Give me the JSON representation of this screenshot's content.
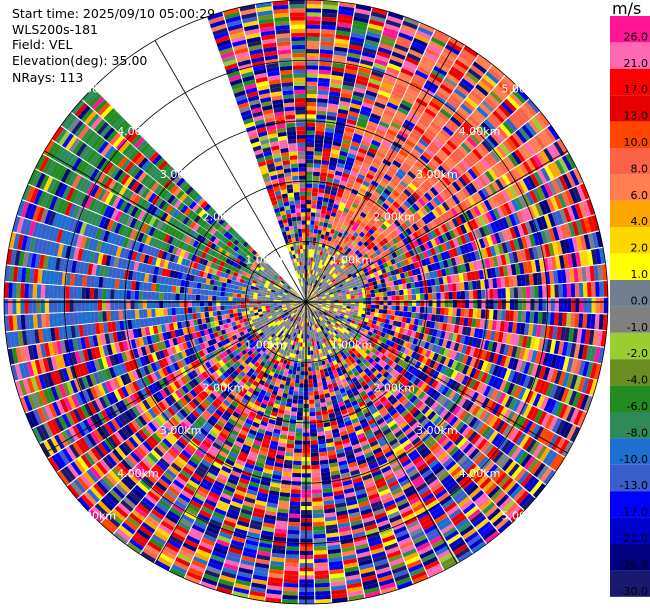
{
  "info": {
    "start_time": "Start time: 2025/09/10 05:00:29",
    "instrument": "WLS200s-181",
    "field": "Field: VEL",
    "elevation": "Elevation(deg): 35.00",
    "nrays": "NRays: 113"
  },
  "colorbar": {
    "unit": "m/s",
    "ticks": [
      "26.0",
      "21.0",
      "17.0",
      "13.0",
      "10.0",
      "8.0",
      "6.0",
      "4.0",
      "2.0",
      "1.0",
      "0.0",
      "-1.0",
      "-2.0",
      "-4.0",
      "-6.0",
      "-8.0",
      "-10.0",
      "-13.0",
      "-17.0",
      "-21.0",
      "-26.0",
      "-30.0"
    ],
    "colors": [
      "#ff1493",
      "#ff69b4",
      "#ff0000",
      "#e60000",
      "#ff4500",
      "#ff6347",
      "#ff7f50",
      "#ffa500",
      "#ffd700",
      "#ffff00",
      "#708090",
      "#808080",
      "#9acd32",
      "#6b8e23",
      "#228b22",
      "#2e8b57",
      "#1e6fcf",
      "#3a5fcd",
      "#0000ff",
      "#0000cd",
      "#000080",
      "#191970"
    ]
  },
  "chart_data": {
    "type": "ppi",
    "field": "VEL",
    "units": "m/s",
    "elevation_deg": 35.0,
    "nrays": 113,
    "ring_labels_km": [
      "1.00km",
      "2.00km",
      "3.00km",
      "4.00km",
      "5.00km"
    ],
    "range_rings_km": [
      1,
      2,
      3,
      4,
      5
    ],
    "max_range_km": 5.0,
    "sectors": [
      {
        "from_deg": 315,
        "to_deg": 340,
        "type": "missing"
      },
      {
        "from_deg": 20,
        "to_deg": 60,
        "type": "coherent",
        "value_ms": 8.0
      },
      {
        "from_deg": 290,
        "to_deg": 315,
        "type": "coherent",
        "value_ms": -6.0
      },
      {
        "from_deg": 260,
        "to_deg": 290,
        "type": "coherent",
        "value_ms": -10.0
      }
    ],
    "near_field": {
      "max_range_km": 1.0,
      "dominant_values_ms": [
        0.0,
        1.0
      ]
    }
  }
}
